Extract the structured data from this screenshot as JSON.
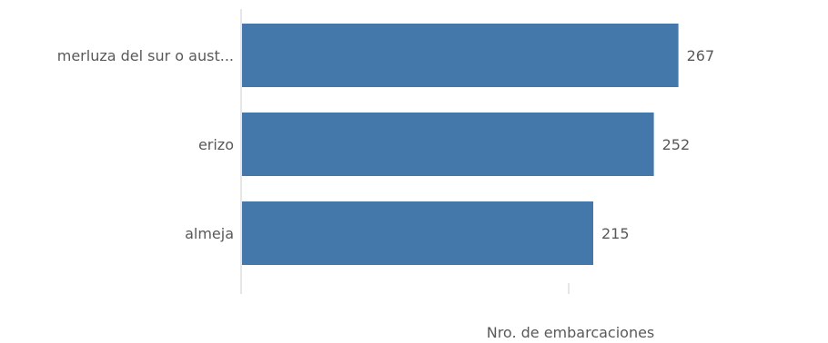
{
  "chart_data": {
    "type": "bar",
    "orientation": "horizontal",
    "categories": [
      "merluza del sur o aust...",
      "erizo",
      "almeja"
    ],
    "values": [
      267,
      252,
      215
    ],
    "xlabel": "Nro. de embarcaciones",
    "ylabel": "",
    "xlim": [
      0,
      356
    ],
    "bar_color": "#4477AA",
    "label_color": "#595959",
    "axis_color": "#cccccc",
    "data_labels": [
      "267",
      "252",
      "215"
    ]
  }
}
